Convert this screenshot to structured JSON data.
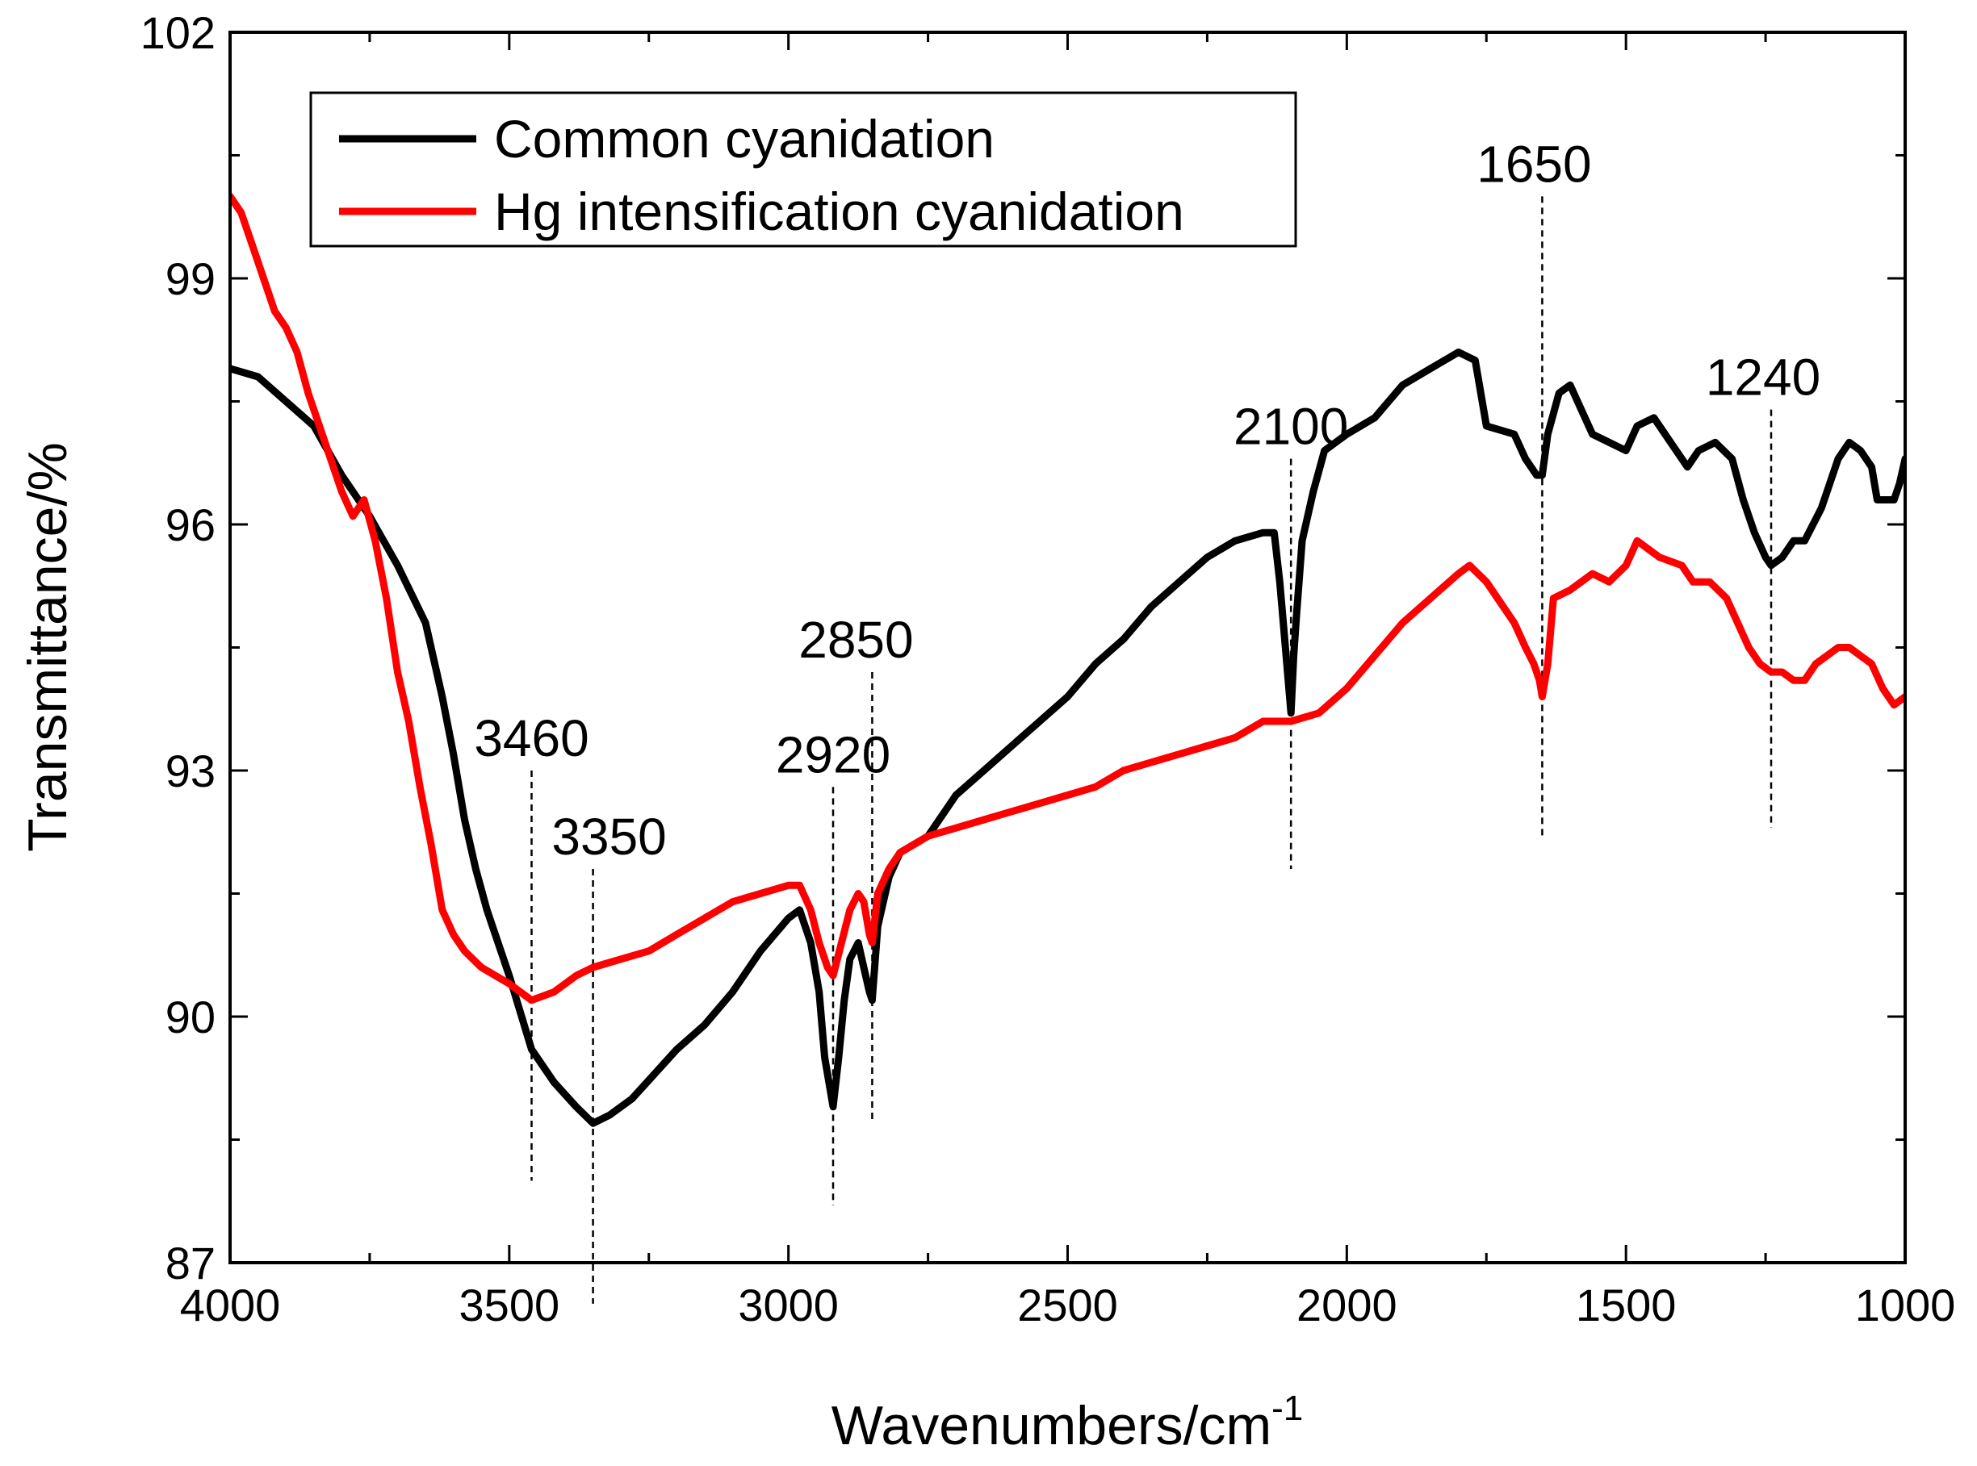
{
  "chart_data": {
    "type": "line",
    "xlabel": "Wavenumbers/cm",
    "xlabel_superscript": "-1",
    "ylabel": "Transmittance/%",
    "xlim": [
      4000,
      1000
    ],
    "ylim": [
      87,
      102
    ],
    "x_ticks": [
      4000,
      3500,
      3000,
      2500,
      2000,
      1500,
      1000
    ],
    "x_tick_labels": [
      "4000",
      "3500",
      "3000",
      "2500",
      "2000",
      "1500",
      "1000"
    ],
    "y_ticks": [
      87,
      90,
      93,
      96,
      99,
      102
    ],
    "y_tick_labels": [
      "87",
      "90",
      "93",
      "96",
      "99",
      "102"
    ],
    "legend_position": "top-left",
    "series": [
      {
        "name": "Common cyanidation",
        "color": "#000000",
        "points": [
          [
            4000,
            97.9
          ],
          [
            3950,
            97.8
          ],
          [
            3900,
            97.5
          ],
          [
            3850,
            97.2
          ],
          [
            3800,
            96.6
          ],
          [
            3750,
            96.1
          ],
          [
            3700,
            95.5
          ],
          [
            3650,
            94.8
          ],
          [
            3620,
            93.9
          ],
          [
            3600,
            93.2
          ],
          [
            3580,
            92.4
          ],
          [
            3560,
            91.8
          ],
          [
            3540,
            91.3
          ],
          [
            3500,
            90.5
          ],
          [
            3460,
            89.6
          ],
          [
            3420,
            89.2
          ],
          [
            3380,
            88.9
          ],
          [
            3350,
            88.7
          ],
          [
            3320,
            88.8
          ],
          [
            3280,
            89.0
          ],
          [
            3240,
            89.3
          ],
          [
            3200,
            89.6
          ],
          [
            3150,
            89.9
          ],
          [
            3100,
            90.3
          ],
          [
            3050,
            90.8
          ],
          [
            3000,
            91.2
          ],
          [
            2980,
            91.3
          ],
          [
            2960,
            90.9
          ],
          [
            2945,
            90.3
          ],
          [
            2935,
            89.5
          ],
          [
            2920,
            88.9
          ],
          [
            2910,
            89.5
          ],
          [
            2900,
            90.2
          ],
          [
            2890,
            90.7
          ],
          [
            2875,
            90.9
          ],
          [
            2865,
            90.6
          ],
          [
            2855,
            90.3
          ],
          [
            2850,
            90.2
          ],
          [
            2840,
            91.1
          ],
          [
            2820,
            91.7
          ],
          [
            2800,
            92.0
          ],
          [
            2750,
            92.2
          ],
          [
            2700,
            92.7
          ],
          [
            2650,
            93.0
          ],
          [
            2600,
            93.3
          ],
          [
            2550,
            93.6
          ],
          [
            2500,
            93.9
          ],
          [
            2450,
            94.3
          ],
          [
            2400,
            94.6
          ],
          [
            2350,
            95.0
          ],
          [
            2300,
            95.3
          ],
          [
            2250,
            95.6
          ],
          [
            2200,
            95.8
          ],
          [
            2150,
            95.9
          ],
          [
            2130,
            95.9
          ],
          [
            2120,
            95.3
          ],
          [
            2110,
            94.5
          ],
          [
            2100,
            93.7
          ],
          [
            2095,
            94.4
          ],
          [
            2090,
            94.9
          ],
          [
            2080,
            95.8
          ],
          [
            2060,
            96.4
          ],
          [
            2040,
            96.9
          ],
          [
            2000,
            97.1
          ],
          [
            1950,
            97.3
          ],
          [
            1900,
            97.7
          ],
          [
            1850,
            97.9
          ],
          [
            1800,
            98.1
          ],
          [
            1770,
            98.0
          ],
          [
            1750,
            97.2
          ],
          [
            1700,
            97.1
          ],
          [
            1680,
            96.8
          ],
          [
            1660,
            96.6
          ],
          [
            1650,
            96.6
          ],
          [
            1640,
            97.1
          ],
          [
            1620,
            97.6
          ],
          [
            1600,
            97.7
          ],
          [
            1580,
            97.4
          ],
          [
            1560,
            97.1
          ],
          [
            1530,
            97.0
          ],
          [
            1500,
            96.9
          ],
          [
            1480,
            97.2
          ],
          [
            1450,
            97.3
          ],
          [
            1420,
            97.0
          ],
          [
            1390,
            96.7
          ],
          [
            1370,
            96.9
          ],
          [
            1340,
            97.0
          ],
          [
            1310,
            96.8
          ],
          [
            1290,
            96.3
          ],
          [
            1270,
            95.9
          ],
          [
            1250,
            95.6
          ],
          [
            1240,
            95.5
          ],
          [
            1220,
            95.6
          ],
          [
            1200,
            95.8
          ],
          [
            1180,
            95.8
          ],
          [
            1150,
            96.2
          ],
          [
            1120,
            96.8
          ],
          [
            1100,
            97.0
          ],
          [
            1080,
            96.9
          ],
          [
            1060,
            96.7
          ],
          [
            1050,
            96.3
          ],
          [
            1020,
            96.3
          ],
          [
            1010,
            96.5
          ],
          [
            1000,
            96.8
          ]
        ]
      },
      {
        "name": "Hg intensification cyanidation",
        "color": "#ff0000",
        "points": [
          [
            4000,
            100.0
          ],
          [
            3980,
            99.8
          ],
          [
            3960,
            99.4
          ],
          [
            3940,
            99.0
          ],
          [
            3920,
            98.6
          ],
          [
            3900,
            98.4
          ],
          [
            3880,
            98.1
          ],
          [
            3860,
            97.6
          ],
          [
            3840,
            97.2
          ],
          [
            3820,
            96.8
          ],
          [
            3800,
            96.4
          ],
          [
            3780,
            96.1
          ],
          [
            3760,
            96.3
          ],
          [
            3740,
            95.8
          ],
          [
            3720,
            95.1
          ],
          [
            3700,
            94.2
          ],
          [
            3680,
            93.6
          ],
          [
            3660,
            92.8
          ],
          [
            3640,
            92.1
          ],
          [
            3620,
            91.3
          ],
          [
            3600,
            91.0
          ],
          [
            3580,
            90.8
          ],
          [
            3550,
            90.6
          ],
          [
            3500,
            90.4
          ],
          [
            3460,
            90.2
          ],
          [
            3420,
            90.3
          ],
          [
            3380,
            90.5
          ],
          [
            3350,
            90.6
          ],
          [
            3300,
            90.7
          ],
          [
            3250,
            90.8
          ],
          [
            3200,
            91.0
          ],
          [
            3150,
            91.2
          ],
          [
            3100,
            91.4
          ],
          [
            3050,
            91.5
          ],
          [
            3000,
            91.6
          ],
          [
            2980,
            91.6
          ],
          [
            2960,
            91.3
          ],
          [
            2945,
            90.9
          ],
          [
            2930,
            90.6
          ],
          [
            2920,
            90.5
          ],
          [
            2905,
            90.9
          ],
          [
            2890,
            91.3
          ],
          [
            2875,
            91.5
          ],
          [
            2865,
            91.4
          ],
          [
            2855,
            91.0
          ],
          [
            2850,
            90.9
          ],
          [
            2840,
            91.5
          ],
          [
            2820,
            91.8
          ],
          [
            2800,
            92.0
          ],
          [
            2750,
            92.2
          ],
          [
            2700,
            92.3
          ],
          [
            2650,
            92.4
          ],
          [
            2600,
            92.5
          ],
          [
            2550,
            92.6
          ],
          [
            2500,
            92.7
          ],
          [
            2450,
            92.8
          ],
          [
            2400,
            93.0
          ],
          [
            2350,
            93.1
          ],
          [
            2300,
            93.2
          ],
          [
            2250,
            93.3
          ],
          [
            2200,
            93.4
          ],
          [
            2150,
            93.6
          ],
          [
            2100,
            93.6
          ],
          [
            2050,
            93.7
          ],
          [
            2000,
            94.0
          ],
          [
            1950,
            94.4
          ],
          [
            1900,
            94.8
          ],
          [
            1850,
            95.1
          ],
          [
            1800,
            95.4
          ],
          [
            1780,
            95.5
          ],
          [
            1750,
            95.3
          ],
          [
            1720,
            95.0
          ],
          [
            1700,
            94.8
          ],
          [
            1680,
            94.5
          ],
          [
            1665,
            94.3
          ],
          [
            1655,
            94.1
          ],
          [
            1650,
            93.9
          ],
          [
            1640,
            94.3
          ],
          [
            1630,
            95.1
          ],
          [
            1600,
            95.2
          ],
          [
            1560,
            95.4
          ],
          [
            1530,
            95.3
          ],
          [
            1500,
            95.5
          ],
          [
            1480,
            95.8
          ],
          [
            1460,
            95.7
          ],
          [
            1440,
            95.6
          ],
          [
            1400,
            95.5
          ],
          [
            1380,
            95.3
          ],
          [
            1350,
            95.3
          ],
          [
            1320,
            95.1
          ],
          [
            1300,
            94.8
          ],
          [
            1280,
            94.5
          ],
          [
            1260,
            94.3
          ],
          [
            1240,
            94.2
          ],
          [
            1220,
            94.2
          ],
          [
            1200,
            94.1
          ],
          [
            1180,
            94.1
          ],
          [
            1160,
            94.3
          ],
          [
            1140,
            94.4
          ],
          [
            1120,
            94.5
          ],
          [
            1100,
            94.5
          ],
          [
            1080,
            94.4
          ],
          [
            1060,
            94.3
          ],
          [
            1040,
            94.0
          ],
          [
            1020,
            93.8
          ],
          [
            1000,
            93.9
          ]
        ]
      }
    ],
    "annotations": [
      {
        "label": "3460",
        "x": 3460,
        "y_top": 93.0,
        "y_bottom": 88.0
      },
      {
        "label": "3350",
        "x": 3350,
        "y_top": 91.8,
        "y_bottom": 86.5
      },
      {
        "label": "2920",
        "x": 2920,
        "y_top": 92.8,
        "y_bottom": 87.7
      },
      {
        "label": "2850",
        "x": 2850,
        "y_top": 94.2,
        "y_bottom": 88.7
      },
      {
        "label": "2100",
        "x": 2100,
        "y_top": 96.8,
        "y_bottom": 91.8
      },
      {
        "label": "1650",
        "x": 1650,
        "y_top": 100.0,
        "y_bottom": 92.2
      },
      {
        "label": "1240",
        "x": 1240,
        "y_top": 97.4,
        "y_bottom": 92.3
      }
    ]
  }
}
